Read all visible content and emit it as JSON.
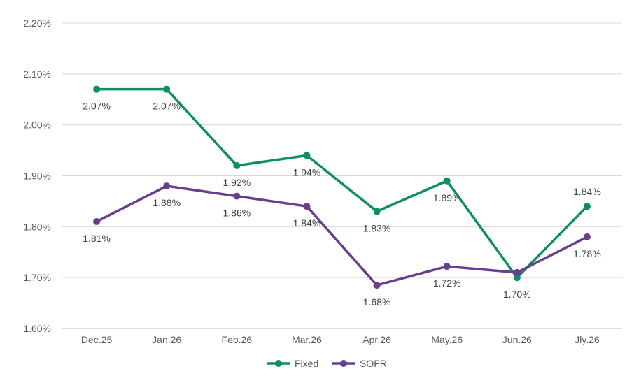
{
  "chart_data": {
    "type": "line",
    "categories": [
      "Dec.25",
      "Jan.26",
      "Feb.26",
      "Mar.26",
      "Apr.26",
      "May.26",
      "Jun.26",
      "Jly.26"
    ],
    "series": [
      {
        "name": "Fixed",
        "color": "#0e8f5e",
        "values": [
          2.07,
          2.07,
          1.92,
          1.94,
          1.83,
          1.89,
          1.7,
          1.84
        ],
        "labels": [
          "2.07%",
          "2.07%",
          "1.92%",
          "1.94%",
          "1.83%",
          "1.89%",
          "1.70%",
          "1.84%"
        ],
        "label_positions": [
          "below",
          "below",
          "below",
          "below",
          "below",
          "below",
          "below",
          "above"
        ]
      },
      {
        "name": "SOFR",
        "color": "#6a3e8d",
        "values": [
          1.81,
          1.88,
          1.86,
          1.84,
          1.685,
          1.722,
          1.71,
          1.78
        ],
        "labels": [
          "1.81%",
          "1.88%",
          "1.86%",
          "1.84%",
          "1.68%",
          "1.72%",
          "",
          "1.78%"
        ],
        "label_positions": [
          "below",
          "below",
          "below",
          "below",
          "below",
          "below",
          "none",
          "below"
        ]
      }
    ],
    "ylim": [
      1.6,
      2.2
    ],
    "yticks": [
      1.6,
      1.7,
      1.8,
      1.9,
      2.0,
      2.1,
      2.2
    ],
    "ytick_labels": [
      "1.60%",
      "1.70%",
      "1.80%",
      "1.90%",
      "2.00%",
      "2.10%",
      "2.20%"
    ],
    "grid": true,
    "legend_position": "bottom-center"
  }
}
